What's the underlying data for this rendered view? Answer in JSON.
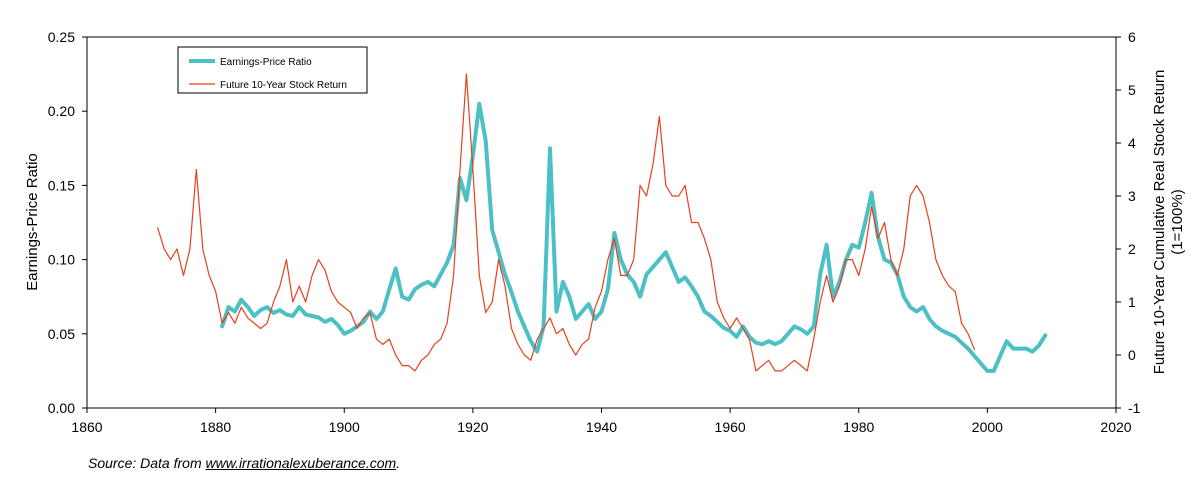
{
  "chart_data": {
    "type": "line",
    "xlim": [
      1860,
      2020
    ],
    "x_ticks": [
      "1860",
      "1880",
      "1900",
      "1920",
      "1940",
      "1960",
      "1980",
      "2000",
      "2020"
    ],
    "y_left": {
      "label": "Earnings-Price Ratio",
      "lim": [
        0,
        0.25
      ],
      "ticks": [
        "0.00",
        "0.05",
        "0.10",
        "0.15",
        "0.20",
        "0.25"
      ]
    },
    "y_right": {
      "label_line1": "Future 10-Year Cumulative Real Stock Return",
      "label_line2": "(1=100%)",
      "lim": [
        -1,
        6
      ],
      "ticks": [
        "-1",
        "0",
        "1",
        "2",
        "3",
        "4",
        "5",
        "6"
      ]
    },
    "grid": false,
    "legend": {
      "placement": "top-left"
    },
    "series": [
      {
        "name": "Earnings-Price Ratio",
        "axis": "left",
        "color": "#4cc0c4",
        "points": [
          [
            1881,
            0.055
          ],
          [
            1882,
            0.068
          ],
          [
            1883,
            0.065
          ],
          [
            1884,
            0.073
          ],
          [
            1885,
            0.068
          ],
          [
            1886,
            0.062
          ],
          [
            1887,
            0.066
          ],
          [
            1888,
            0.068
          ],
          [
            1889,
            0.064
          ],
          [
            1890,
            0.066
          ],
          [
            1891,
            0.063
          ],
          [
            1892,
            0.062
          ],
          [
            1893,
            0.068
          ],
          [
            1894,
            0.063
          ],
          [
            1895,
            0.062
          ],
          [
            1896,
            0.061
          ],
          [
            1897,
            0.058
          ],
          [
            1898,
            0.06
          ],
          [
            1899,
            0.056
          ],
          [
            1900,
            0.05
          ],
          [
            1901,
            0.052
          ],
          [
            1902,
            0.055
          ],
          [
            1903,
            0.058
          ],
          [
            1904,
            0.065
          ],
          [
            1905,
            0.06
          ],
          [
            1906,
            0.065
          ],
          [
            1907,
            0.08
          ],
          [
            1908,
            0.094
          ],
          [
            1909,
            0.075
          ],
          [
            1910,
            0.073
          ],
          [
            1911,
            0.08
          ],
          [
            1912,
            0.083
          ],
          [
            1913,
            0.085
          ],
          [
            1914,
            0.082
          ],
          [
            1915,
            0.09
          ],
          [
            1916,
            0.098
          ],
          [
            1917,
            0.11
          ],
          [
            1918,
            0.155
          ],
          [
            1919,
            0.14
          ],
          [
            1920,
            0.17
          ],
          [
            1921,
            0.205
          ],
          [
            1922,
            0.18
          ],
          [
            1923,
            0.12
          ],
          [
            1924,
            0.105
          ],
          [
            1925,
            0.09
          ],
          [
            1926,
            0.078
          ],
          [
            1927,
            0.065
          ],
          [
            1928,
            0.055
          ],
          [
            1929,
            0.045
          ],
          [
            1930,
            0.038
          ],
          [
            1931,
            0.055
          ],
          [
            1932,
            0.175
          ],
          [
            1933,
            0.065
          ],
          [
            1934,
            0.085
          ],
          [
            1935,
            0.075
          ],
          [
            1936,
            0.06
          ],
          [
            1937,
            0.065
          ],
          [
            1938,
            0.07
          ],
          [
            1939,
            0.06
          ],
          [
            1940,
            0.065
          ],
          [
            1941,
            0.08
          ],
          [
            1942,
            0.118
          ],
          [
            1943,
            0.1
          ],
          [
            1944,
            0.09
          ],
          [
            1945,
            0.085
          ],
          [
            1946,
            0.075
          ],
          [
            1947,
            0.09
          ],
          [
            1948,
            0.095
          ],
          [
            1949,
            0.1
          ],
          [
            1950,
            0.105
          ],
          [
            1951,
            0.095
          ],
          [
            1952,
            0.085
          ],
          [
            1953,
            0.088
          ],
          [
            1954,
            0.082
          ],
          [
            1955,
            0.075
          ],
          [
            1956,
            0.065
          ],
          [
            1957,
            0.062
          ],
          [
            1958,
            0.058
          ],
          [
            1959,
            0.054
          ],
          [
            1960,
            0.052
          ],
          [
            1961,
            0.048
          ],
          [
            1962,
            0.055
          ],
          [
            1963,
            0.048
          ],
          [
            1964,
            0.044
          ],
          [
            1965,
            0.043
          ],
          [
            1966,
            0.045
          ],
          [
            1967,
            0.043
          ],
          [
            1968,
            0.045
          ],
          [
            1969,
            0.05
          ],
          [
            1970,
            0.055
          ],
          [
            1971,
            0.053
          ],
          [
            1972,
            0.05
          ],
          [
            1973,
            0.055
          ],
          [
            1974,
            0.09
          ],
          [
            1975,
            0.11
          ],
          [
            1976,
            0.075
          ],
          [
            1977,
            0.085
          ],
          [
            1978,
            0.1
          ],
          [
            1979,
            0.11
          ],
          [
            1980,
            0.108
          ],
          [
            1981,
            0.125
          ],
          [
            1982,
            0.145
          ],
          [
            1983,
            0.115
          ],
          [
            1984,
            0.1
          ],
          [
            1985,
            0.098
          ],
          [
            1986,
            0.09
          ],
          [
            1987,
            0.075
          ],
          [
            1988,
            0.068
          ],
          [
            1989,
            0.065
          ],
          [
            1990,
            0.068
          ],
          [
            1991,
            0.06
          ],
          [
            1992,
            0.055
          ],
          [
            1993,
            0.052
          ],
          [
            1994,
            0.05
          ],
          [
            1995,
            0.048
          ],
          [
            1996,
            0.044
          ],
          [
            1997,
            0.04
          ],
          [
            1998,
            0.035
          ],
          [
            1999,
            0.03
          ],
          [
            2000,
            0.025
          ],
          [
            2001,
            0.025
          ],
          [
            2002,
            0.035
          ],
          [
            2003,
            0.045
          ],
          [
            2004,
            0.04
          ],
          [
            2005,
            0.04
          ],
          [
            2006,
            0.04
          ],
          [
            2007,
            0.038
          ],
          [
            2008,
            0.042
          ],
          [
            2009,
            0.049
          ]
        ]
      },
      {
        "name": "Future 10-Year Stock Return",
        "axis": "right",
        "color": "#e8401c",
        "points": [
          [
            1871,
            2.4
          ],
          [
            1872,
            2.0
          ],
          [
            1873,
            1.8
          ],
          [
            1874,
            2.0
          ],
          [
            1875,
            1.5
          ],
          [
            1876,
            2.0
          ],
          [
            1877,
            3.5
          ],
          [
            1878,
            2.0
          ],
          [
            1879,
            1.5
          ],
          [
            1880,
            1.2
          ],
          [
            1881,
            0.6
          ],
          [
            1882,
            0.8
          ],
          [
            1883,
            0.6
          ],
          [
            1884,
            0.9
          ],
          [
            1885,
            0.7
          ],
          [
            1886,
            0.6
          ],
          [
            1887,
            0.5
          ],
          [
            1888,
            0.6
          ],
          [
            1889,
            1.0
          ],
          [
            1890,
            1.3
          ],
          [
            1891,
            1.8
          ],
          [
            1892,
            1.0
          ],
          [
            1893,
            1.3
          ],
          [
            1894,
            1.0
          ],
          [
            1895,
            1.5
          ],
          [
            1896,
            1.8
          ],
          [
            1897,
            1.6
          ],
          [
            1898,
            1.2
          ],
          [
            1899,
            1.0
          ],
          [
            1900,
            0.9
          ],
          [
            1901,
            0.8
          ],
          [
            1902,
            0.5
          ],
          [
            1903,
            0.7
          ],
          [
            1904,
            0.8
          ],
          [
            1905,
            0.3
          ],
          [
            1906,
            0.2
          ],
          [
            1907,
            0.3
          ],
          [
            1908,
            0.0
          ],
          [
            1909,
            -0.2
          ],
          [
            1910,
            -0.2
          ],
          [
            1911,
            -0.3
          ],
          [
            1912,
            -0.1
          ],
          [
            1913,
            0.0
          ],
          [
            1914,
            0.2
          ],
          [
            1915,
            0.3
          ],
          [
            1916,
            0.6
          ],
          [
            1917,
            1.5
          ],
          [
            1918,
            3.5
          ],
          [
            1919,
            5.3
          ],
          [
            1920,
            3.5
          ],
          [
            1921,
            1.5
          ],
          [
            1922,
            0.8
          ],
          [
            1923,
            1.0
          ],
          [
            1924,
            1.8
          ],
          [
            1925,
            1.3
          ],
          [
            1926,
            0.5
          ],
          [
            1927,
            0.2
          ],
          [
            1928,
            0.0
          ],
          [
            1929,
            -0.1
          ],
          [
            1930,
            0.3
          ],
          [
            1931,
            0.5
          ],
          [
            1932,
            0.7
          ],
          [
            1933,
            0.4
          ],
          [
            1934,
            0.5
          ],
          [
            1935,
            0.2
          ],
          [
            1936,
            0.0
          ],
          [
            1937,
            0.2
          ],
          [
            1938,
            0.3
          ],
          [
            1939,
            0.9
          ],
          [
            1940,
            1.2
          ],
          [
            1941,
            1.8
          ],
          [
            1942,
            2.2
          ],
          [
            1943,
            1.5
          ],
          [
            1944,
            1.5
          ],
          [
            1945,
            1.8
          ],
          [
            1946,
            3.2
          ],
          [
            1947,
            3.0
          ],
          [
            1948,
            3.6
          ],
          [
            1949,
            4.5
          ],
          [
            1950,
            3.2
          ],
          [
            1951,
            3.0
          ],
          [
            1952,
            3.0
          ],
          [
            1953,
            3.2
          ],
          [
            1954,
            2.5
          ],
          [
            1955,
            2.5
          ],
          [
            1956,
            2.2
          ],
          [
            1957,
            1.8
          ],
          [
            1958,
            1.0
          ],
          [
            1959,
            0.7
          ],
          [
            1960,
            0.5
          ],
          [
            1961,
            0.7
          ],
          [
            1962,
            0.5
          ],
          [
            1963,
            0.3
          ],
          [
            1964,
            -0.3
          ],
          [
            1965,
            -0.2
          ],
          [
            1966,
            -0.1
          ],
          [
            1967,
            -0.3
          ],
          [
            1968,
            -0.3
          ],
          [
            1969,
            -0.2
          ],
          [
            1970,
            -0.1
          ],
          [
            1971,
            -0.2
          ],
          [
            1972,
            -0.3
          ],
          [
            1973,
            0.3
          ],
          [
            1974,
            1.0
          ],
          [
            1975,
            1.5
          ],
          [
            1976,
            1.0
          ],
          [
            1977,
            1.3
          ],
          [
            1978,
            1.8
          ],
          [
            1979,
            1.8
          ],
          [
            1980,
            1.5
          ],
          [
            1981,
            2.0
          ],
          [
            1982,
            2.8
          ],
          [
            1983,
            2.2
          ],
          [
            1984,
            2.5
          ],
          [
            1985,
            1.8
          ],
          [
            1986,
            1.5
          ],
          [
            1987,
            2.0
          ],
          [
            1988,
            3.0
          ],
          [
            1989,
            3.2
          ],
          [
            1990,
            3.0
          ],
          [
            1991,
            2.5
          ],
          [
            1992,
            1.8
          ],
          [
            1993,
            1.5
          ],
          [
            1994,
            1.3
          ],
          [
            1995,
            1.2
          ],
          [
            1996,
            0.6
          ],
          [
            1997,
            0.4
          ],
          [
            1998,
            0.1
          ]
        ]
      }
    ]
  },
  "source": {
    "prefix": "Source: Data from ",
    "link": "www.irrationalexuberance.com",
    "suffix": "."
  }
}
